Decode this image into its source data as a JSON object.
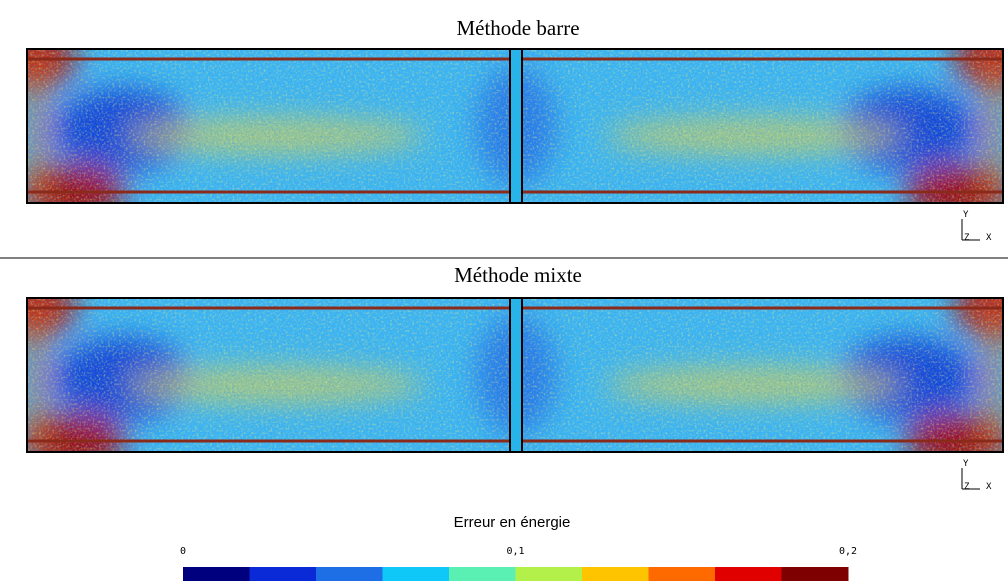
{
  "panels": [
    {
      "title": "Méthode barre",
      "axes": {
        "y": "Y",
        "z": "Z",
        "x": "X"
      }
    },
    {
      "title": "Méthode mixte",
      "axes": {
        "y": "Y",
        "z": "Z",
        "x": "X"
      }
    }
  ],
  "colorbar": {
    "title": "Erreur en énergie",
    "lim": [
      0,
      0.2
    ],
    "ticks": [
      0,
      {
        "value": 0.1,
        "label": "0,1"
      },
      {
        "value": 0.2,
        "label": "0,2"
      }
    ],
    "colors": [
      "#00007f",
      "#0a2ad8",
      "#1e6ee6",
      "#10c8f8",
      "#5af0b4",
      "#b4f04a",
      "#ffc400",
      "#ff6a00",
      "#e00000",
      "#7f0000"
    ]
  }
}
